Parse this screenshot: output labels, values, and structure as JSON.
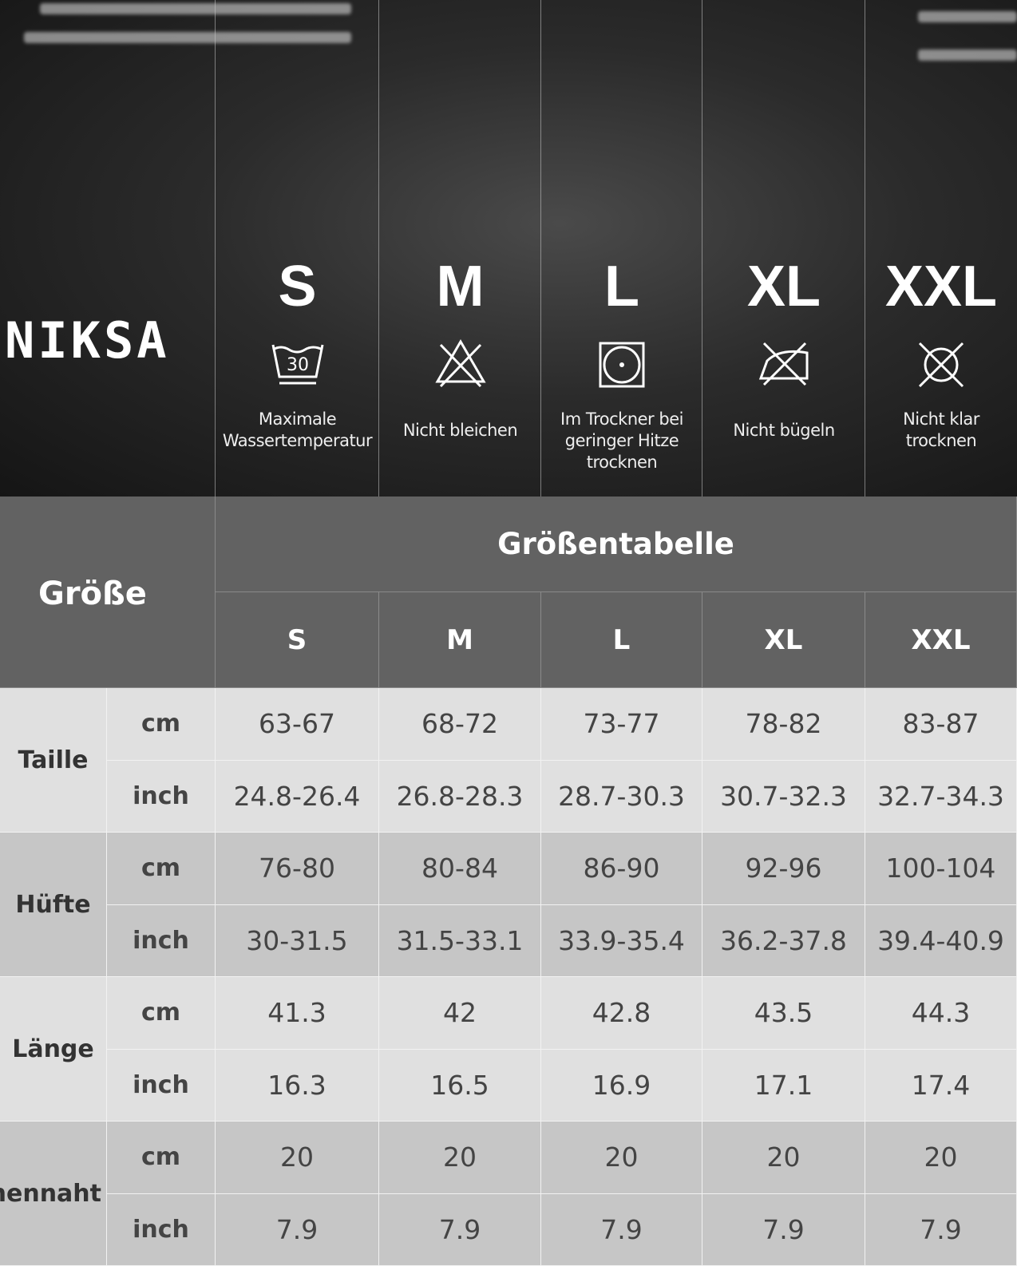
{
  "brand": "NIKSA",
  "sizes": [
    "S",
    "M",
    "L",
    "XL",
    "XXL"
  ],
  "care": [
    {
      "icon_text": "30",
      "lines": [
        "Maximale",
        "Wassertemperatur"
      ]
    },
    {
      "lines": [
        "Nicht bleichen"
      ]
    },
    {
      "lines": [
        "Im Trockner bei",
        "geringer Hitze trocknen"
      ]
    },
    {
      "lines": [
        "Nicht bügeln"
      ]
    },
    {
      "lines": [
        "Nicht klar",
        "trocknen"
      ]
    }
  ],
  "table": {
    "corner": "Größe",
    "title": "Größentabelle",
    "columns": [
      "S",
      "M",
      "L",
      "XL",
      "XXL"
    ],
    "groups": [
      {
        "name": "Taille",
        "rows": [
          {
            "unit": "cm",
            "values": [
              "63-67",
              "68-72",
              "73-77",
              "78-82",
              "83-87"
            ]
          },
          {
            "unit": "inch",
            "values": [
              "24.8-26.4",
              "26.8-28.3",
              "28.7-30.3",
              "30.7-32.3",
              "32.7-34.3"
            ]
          }
        ]
      },
      {
        "name": "Hüfte",
        "rows": [
          {
            "unit": "cm",
            "values": [
              "76-80",
              "80-84",
              "86-90",
              "92-96",
              "100-104"
            ]
          },
          {
            "unit": "inch",
            "values": [
              "30-31.5",
              "31.5-33.1",
              "33.9-35.4",
              "36.2-37.8",
              "39.4-40.9"
            ]
          }
        ]
      },
      {
        "name": "Länge",
        "rows": [
          {
            "unit": "cm",
            "values": [
              "41.3",
              "42",
              "42.8",
              "43.5",
              "44.3"
            ]
          },
          {
            "unit": "inch",
            "values": [
              "16.3",
              "16.5",
              "16.9",
              "17.1",
              "17.4"
            ]
          }
        ]
      },
      {
        "name": "Innennaht",
        "rows": [
          {
            "unit": "cm",
            "values": [
              "20",
              "20",
              "20",
              "20",
              "20"
            ]
          },
          {
            "unit": "inch",
            "values": [
              "7.9",
              "7.9",
              "7.9",
              "7.9",
              "7.9"
            ]
          }
        ]
      }
    ]
  }
}
